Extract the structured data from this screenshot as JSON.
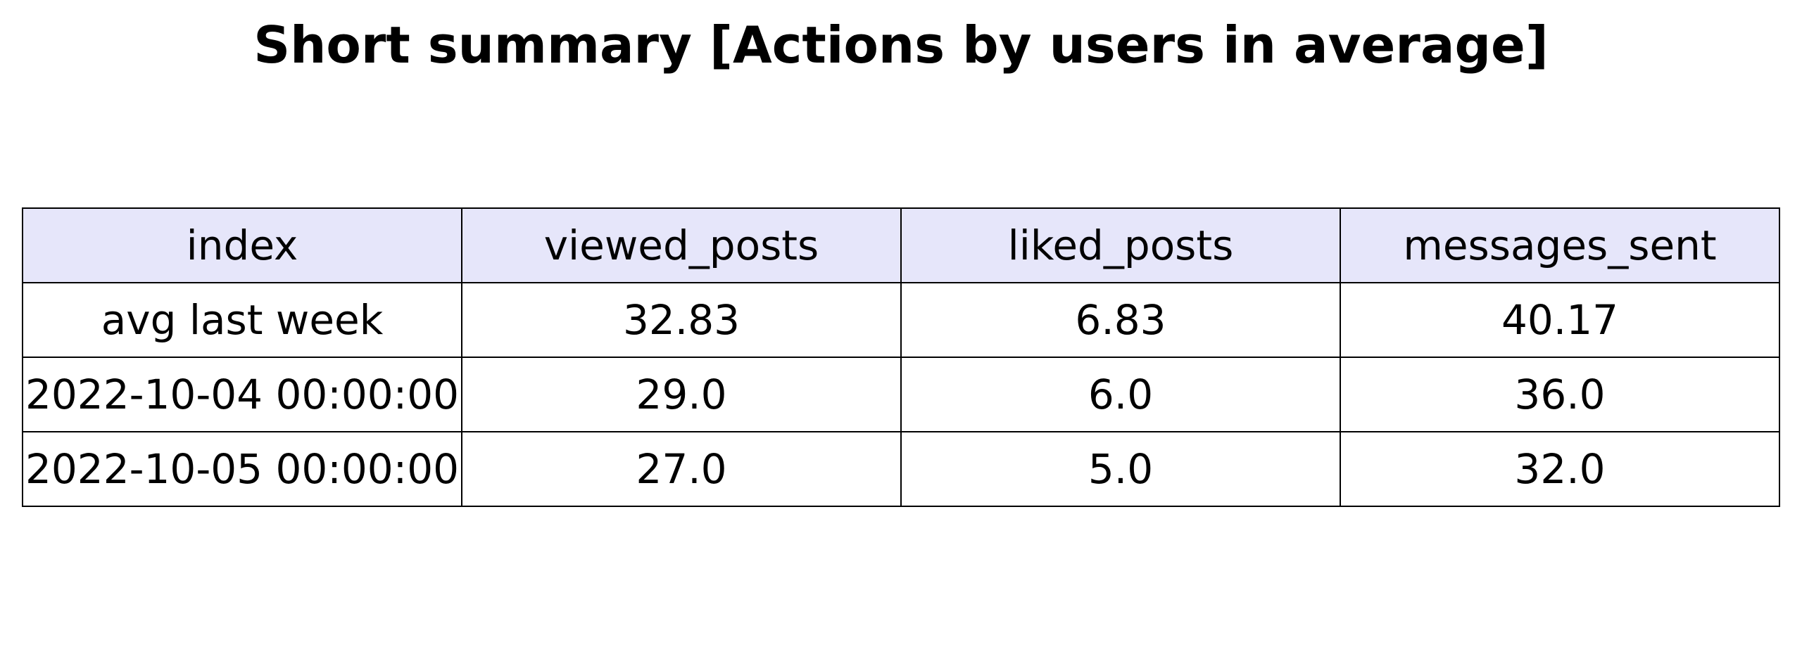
{
  "header": {
    "title": "Short summary [Actions by users in average]"
  },
  "colors": {
    "header_background": "#e6e6fa",
    "cell_background": "#ffffff",
    "border": "#000000"
  },
  "chart_data": {
    "type": "table",
    "title": "Short summary [Actions by users in average]",
    "columns": [
      "index",
      "viewed_posts",
      "liked_posts",
      "messages_sent"
    ],
    "rows": [
      [
        "avg last week",
        "32.83",
        "6.83",
        "40.17"
      ],
      [
        "2022-10-04 00:00:00",
        "29.0",
        "6.0",
        "36.0"
      ],
      [
        "2022-10-05 00:00:00",
        "27.0",
        "5.0",
        "32.0"
      ]
    ]
  }
}
